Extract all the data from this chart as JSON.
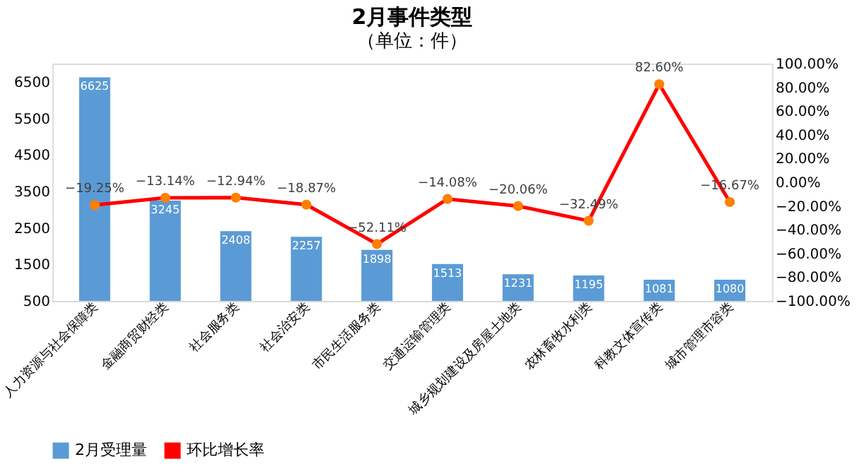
{
  "chart_data": {
    "type": "bar",
    "title": "2月事件类型",
    "subtitle": "（单位：件）",
    "categories": [
      "人力资源与社会保障类",
      "金融商贸财经类",
      "社会服务类",
      "社会治安类",
      "市民生活服务类",
      "交通运输管理类",
      "城乡规划建设及房屋土地类",
      "农林畜牧水利类",
      "科教文体宣传类",
      "城市管理市容类"
    ],
    "series": [
      {
        "name": "2月受理量",
        "type": "bar",
        "color": "#5b9bd5",
        "values": [
          6625,
          3245,
          2408,
          2257,
          1898,
          1513,
          1231,
          1195,
          1081,
          1080
        ],
        "value_labels": [
          "6625",
          "3245",
          "2408",
          "2257",
          "1898",
          "1513",
          "1231",
          "1195",
          "1081",
          "1080"
        ]
      },
      {
        "name": "环比增长率",
        "type": "line",
        "axis": "y2",
        "color": "#ff0000",
        "marker": "circle",
        "values": [
          -19.25,
          -13.14,
          -12.94,
          -18.87,
          -52.11,
          -14.08,
          -20.06,
          -32.49,
          82.6,
          -16.67
        ],
        "value_labels": [
          "−19.25%",
          "−13.14%",
          "−12.94%",
          "−18.87%",
          "−52.11%",
          "−14.08%",
          "−20.06%",
          "−32.49%",
          "82.60%",
          "−16.67%"
        ]
      }
    ],
    "ylim": [
      500,
      7000
    ],
    "yticks": [
      500,
      1500,
      2500,
      3500,
      4500,
      5500,
      6500
    ],
    "y2lim": [
      -100,
      100
    ],
    "y2ticks": [
      {
        "value": -100,
        "label": "−100.00%"
      },
      {
        "value": -80,
        "label": "−80.00%"
      },
      {
        "value": -60,
        "label": "−60.00%"
      },
      {
        "value": -40,
        "label": "−40.00%"
      },
      {
        "value": -20,
        "label": "−20.00%"
      },
      {
        "value": 0,
        "label": "0.00%"
      },
      {
        "value": 20,
        "label": "20.00%"
      },
      {
        "value": 40,
        "label": "40.00%"
      },
      {
        "value": 60,
        "label": "60.00%"
      },
      {
        "value": 80,
        "label": "80.00%"
      },
      {
        "value": 100,
        "label": "100.00%"
      }
    ],
    "grid": false,
    "legend": "bottom"
  }
}
